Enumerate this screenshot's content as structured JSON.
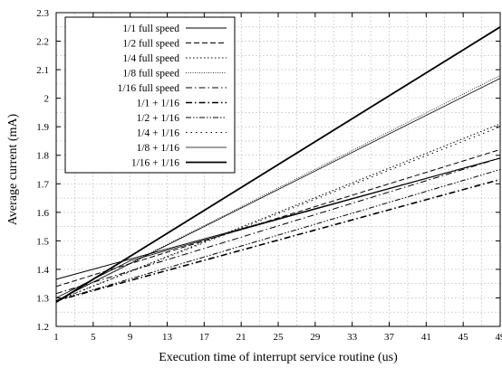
{
  "chart_data": {
    "type": "line",
    "xlabel": "Execution time of interrupt service routine (us)",
    "ylabel": "Average current (mA)",
    "xlim": [
      1,
      49
    ],
    "ylim": [
      1.2,
      2.3
    ],
    "xticks": [
      1,
      5,
      9,
      13,
      17,
      21,
      25,
      29,
      33,
      37,
      41,
      45,
      49
    ],
    "yticks": [
      1.2,
      1.3,
      1.4,
      1.5,
      1.6,
      1.7,
      1.8,
      1.9,
      2,
      2.1,
      2.2,
      2.3
    ],
    "xticks_minor": [
      3,
      7,
      11,
      15,
      19,
      23,
      27,
      31,
      35,
      39,
      43,
      47
    ],
    "yticks_minor": [
      1.25,
      1.35,
      1.45,
      1.55,
      1.65,
      1.75,
      1.85,
      1.95,
      2.05,
      2.15,
      2.25
    ],
    "grid": "dashed",
    "legend_position": "top-left",
    "series": [
      {
        "name": "1/1 full speed",
        "style": "solid",
        "x": [
          1,
          49
        ],
        "y": [
          1.365,
          1.79
        ]
      },
      {
        "name": "1/2 full speed",
        "style": "dashed",
        "x": [
          1,
          49
        ],
        "y": [
          1.34,
          1.82
        ]
      },
      {
        "name": "1/4 full speed",
        "style": "dotted",
        "x": [
          1,
          49
        ],
        "y": [
          1.29,
          1.91
        ]
      },
      {
        "name": "1/8 full speed",
        "style": "dotted-fine",
        "x": [
          1,
          49
        ],
        "y": [
          1.29,
          2.08
        ]
      },
      {
        "name": "1/16 full speed",
        "style": "dashdot",
        "x": [
          1,
          49
        ],
        "y": [
          1.315,
          1.79
        ]
      },
      {
        "name": "1/1 + 1/16",
        "style": "dashdot-bold",
        "x": [
          1,
          49
        ],
        "y": [
          1.29,
          1.715
        ]
      },
      {
        "name": "1/2 + 1/16",
        "style": "dashdotdot",
        "x": [
          1,
          49
        ],
        "y": [
          1.29,
          1.75
        ]
      },
      {
        "name": "1/4 + 1/16",
        "style": "dotted-wide",
        "x": [
          1,
          49
        ],
        "y": [
          1.29,
          1.9
        ]
      },
      {
        "name": "1/8 + 1/16",
        "style": "solid-thin",
        "x": [
          1,
          49
        ],
        "y": [
          1.29,
          2.07
        ]
      },
      {
        "name": "1/16 + 1/16",
        "style": "solid-bold",
        "x": [
          1,
          49
        ],
        "y": [
          1.285,
          2.25
        ]
      },
      {
        "name": "",
        "style": "solid-thin",
        "x": [
          1,
          9,
          25,
          49
        ],
        "y": [
          1.3,
          1.43,
          1.575,
          1.79
        ]
      }
    ]
  }
}
